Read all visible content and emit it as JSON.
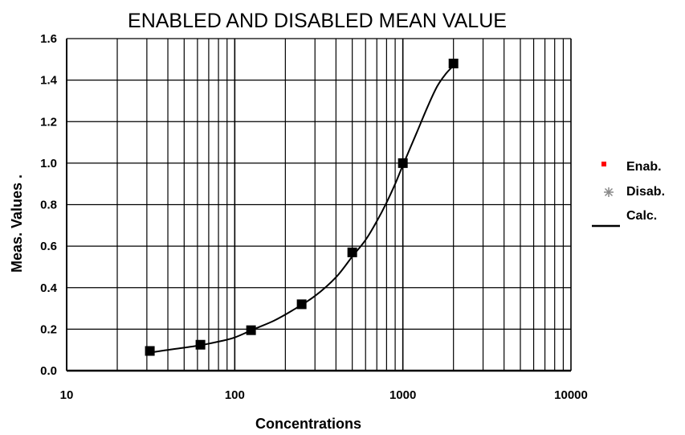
{
  "chart_data": {
    "type": "scatter",
    "title": "ENABLED AND DISABLED MEAN VALUE",
    "xlabel": "Concentrations",
    "ylabel": "Meas. Values .",
    "xscale": "log",
    "xlim": [
      10,
      10000
    ],
    "ylim": [
      0,
      1.6
    ],
    "grid": true,
    "x_ticks": [
      "10",
      "100",
      "1000",
      "10000"
    ],
    "y_ticks": [
      "0.0",
      "0.2",
      "0.4",
      "0.6",
      "0.8",
      "1.0",
      "1.2",
      "1.4",
      "1.6"
    ],
    "legend_position": "right",
    "legend": [
      {
        "label": "Enab.",
        "marker": "square",
        "color": "#ff0000"
      },
      {
        "label": "Disab.",
        "marker": "asterisk",
        "color": "#888888"
      },
      {
        "label": "Calc.",
        "marker": "line",
        "color": "#000000"
      }
    ],
    "series": [
      {
        "marker": "square",
        "color": "#000000",
        "x": [
          31.25,
          62.5,
          125,
          250,
          500,
          1000,
          2000
        ],
        "y": [
          0.095,
          0.125,
          0.195,
          0.32,
          0.57,
          1.0,
          1.48
        ]
      },
      {
        "marker": "line",
        "color": "#000000",
        "x": [
          30,
          40,
          60,
          80,
          100,
          130,
          170,
          220,
          300,
          400,
          500,
          600,
          700,
          800,
          900,
          1000,
          1200,
          1400,
          1600,
          1800,
          2000
        ],
        "y": [
          0.085,
          0.1,
          0.12,
          0.14,
          0.16,
          0.2,
          0.24,
          0.29,
          0.36,
          0.45,
          0.55,
          0.63,
          0.72,
          0.81,
          0.9,
          0.99,
          1.14,
          1.27,
          1.37,
          1.43,
          1.47
        ]
      }
    ]
  }
}
